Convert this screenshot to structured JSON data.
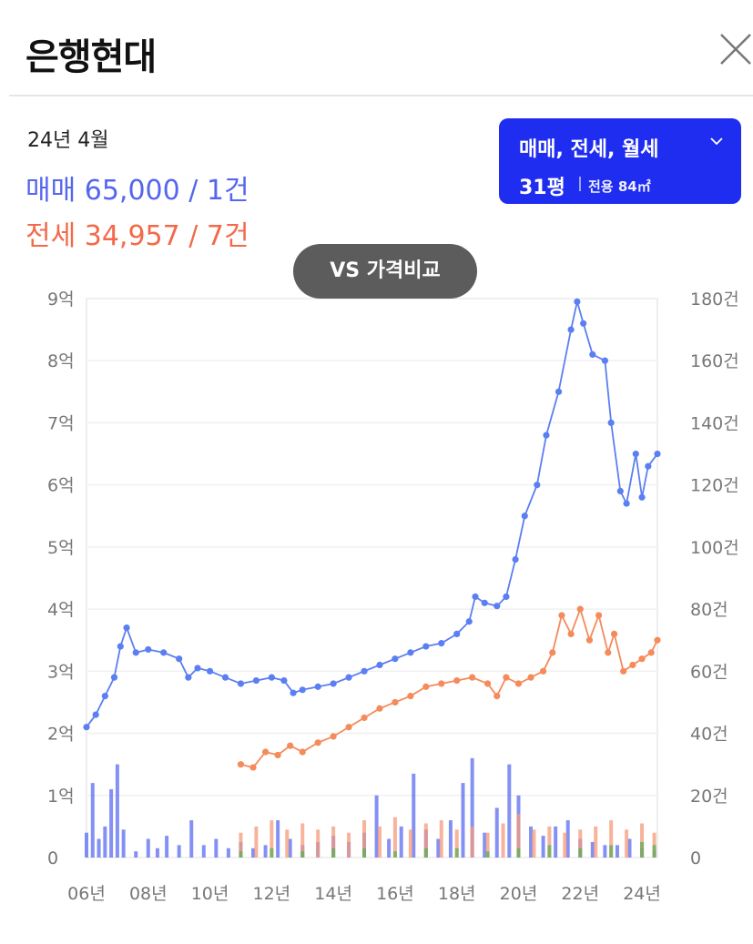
{
  "header": {
    "title": "은행현대"
  },
  "summary": {
    "date": "24년 4월",
    "sale": "매매 65,000 / 1건",
    "jeonse": "전세 34,957 / 7건"
  },
  "filter": {
    "trade_types": "매매, 전세, 월세",
    "size": "31평",
    "area": "전용 84㎡"
  },
  "compare_button": {
    "label": "VS 가격비교"
  },
  "colors": {
    "sale": "#5b7ff2",
    "jeonse": "#f58a5a",
    "accent": "#1f2df0"
  },
  "chart_data": {
    "type": "line",
    "x_ticks": [
      "06년",
      "08년",
      "10년",
      "12년",
      "14년",
      "16년",
      "18년",
      "20년",
      "22년",
      "24년"
    ],
    "y_left": {
      "ticks": [
        "0",
        "1억",
        "2억",
        "3억",
        "4억",
        "5억",
        "6억",
        "7억",
        "8억",
        "9억"
      ],
      "range": [
        0,
        9
      ]
    },
    "y_right": {
      "ticks": [
        "0",
        "20건",
        "40건",
        "60건",
        "80건",
        "100건",
        "120건",
        "140건",
        "160건",
        "180건"
      ],
      "range": [
        0,
        180
      ]
    },
    "x_range": [
      2006,
      2024.5
    ],
    "series": [
      {
        "name": "매매",
        "color": "#5b7ff2",
        "points": [
          [
            2006.0,
            2.1
          ],
          [
            2006.3,
            2.3
          ],
          [
            2006.6,
            2.6
          ],
          [
            2006.9,
            2.9
          ],
          [
            2007.1,
            3.4
          ],
          [
            2007.3,
            3.7
          ],
          [
            2007.6,
            3.3
          ],
          [
            2008.0,
            3.35
          ],
          [
            2008.5,
            3.3
          ],
          [
            2009.0,
            3.2
          ],
          [
            2009.3,
            2.9
          ],
          [
            2009.6,
            3.05
          ],
          [
            2010.0,
            3.0
          ],
          [
            2010.5,
            2.9
          ],
          [
            2011.0,
            2.8
          ],
          [
            2011.5,
            2.85
          ],
          [
            2012.0,
            2.9
          ],
          [
            2012.4,
            2.85
          ],
          [
            2012.7,
            2.65
          ],
          [
            2013.0,
            2.7
          ],
          [
            2013.5,
            2.75
          ],
          [
            2014.0,
            2.8
          ],
          [
            2014.5,
            2.9
          ],
          [
            2015.0,
            3.0
          ],
          [
            2015.5,
            3.1
          ],
          [
            2016.0,
            3.2
          ],
          [
            2016.5,
            3.3
          ],
          [
            2017.0,
            3.4
          ],
          [
            2017.5,
            3.45
          ],
          [
            2018.0,
            3.6
          ],
          [
            2018.4,
            3.8
          ],
          [
            2018.6,
            4.2
          ],
          [
            2018.9,
            4.1
          ],
          [
            2019.3,
            4.05
          ],
          [
            2019.6,
            4.2
          ],
          [
            2019.9,
            4.8
          ],
          [
            2020.2,
            5.5
          ],
          [
            2020.6,
            6.0
          ],
          [
            2020.9,
            6.8
          ],
          [
            2021.3,
            7.5
          ],
          [
            2021.7,
            8.5
          ],
          [
            2021.9,
            8.95
          ],
          [
            2022.1,
            8.6
          ],
          [
            2022.4,
            8.1
          ],
          [
            2022.8,
            8.0
          ],
          [
            2023.0,
            7.0
          ],
          [
            2023.3,
            5.9
          ],
          [
            2023.5,
            5.7
          ],
          [
            2023.8,
            6.5
          ],
          [
            2024.0,
            5.8
          ],
          [
            2024.2,
            6.3
          ],
          [
            2024.5,
            6.5
          ]
        ]
      },
      {
        "name": "전세",
        "color": "#f58a5a",
        "points": [
          [
            2011.0,
            1.5
          ],
          [
            2011.4,
            1.45
          ],
          [
            2011.8,
            1.7
          ],
          [
            2012.2,
            1.65
          ],
          [
            2012.6,
            1.8
          ],
          [
            2013.0,
            1.7
          ],
          [
            2013.5,
            1.85
          ],
          [
            2014.0,
            1.95
          ],
          [
            2014.5,
            2.1
          ],
          [
            2015.0,
            2.25
          ],
          [
            2015.5,
            2.4
          ],
          [
            2016.0,
            2.5
          ],
          [
            2016.5,
            2.6
          ],
          [
            2017.0,
            2.75
          ],
          [
            2017.5,
            2.8
          ],
          [
            2018.0,
            2.85
          ],
          [
            2018.5,
            2.9
          ],
          [
            2019.0,
            2.8
          ],
          [
            2019.3,
            2.6
          ],
          [
            2019.6,
            2.9
          ],
          [
            2020.0,
            2.8
          ],
          [
            2020.4,
            2.9
          ],
          [
            2020.8,
            3.0
          ],
          [
            2021.1,
            3.3
          ],
          [
            2021.4,
            3.9
          ],
          [
            2021.7,
            3.6
          ],
          [
            2022.0,
            4.0
          ],
          [
            2022.3,
            3.5
          ],
          [
            2022.6,
            3.9
          ],
          [
            2022.9,
            3.3
          ],
          [
            2023.1,
            3.6
          ],
          [
            2023.4,
            3.0
          ],
          [
            2023.7,
            3.1
          ],
          [
            2024.0,
            3.2
          ],
          [
            2024.3,
            3.3
          ],
          [
            2024.5,
            3.5
          ]
        ]
      },
      {
        "name": "매매 거래량",
        "color": "#5b6cf0",
        "axis": "right",
        "points": [
          [
            2006.0,
            8
          ],
          [
            2006.2,
            24
          ],
          [
            2006.4,
            6
          ],
          [
            2006.6,
            10
          ],
          [
            2006.8,
            22
          ],
          [
            2007.0,
            30
          ],
          [
            2007.2,
            9
          ],
          [
            2007.6,
            2
          ],
          [
            2008.0,
            6
          ],
          [
            2008.3,
            3
          ],
          [
            2008.6,
            7
          ],
          [
            2009.0,
            4
          ],
          [
            2009.4,
            12
          ],
          [
            2009.8,
            4
          ],
          [
            2010.2,
            6
          ],
          [
            2010.6,
            3
          ],
          [
            2011.0,
            5
          ],
          [
            2011.4,
            3
          ],
          [
            2011.8,
            4
          ],
          [
            2012.2,
            12
          ],
          [
            2012.6,
            6
          ],
          [
            2013.0,
            4
          ],
          [
            2013.5,
            5
          ],
          [
            2014.0,
            7
          ],
          [
            2014.5,
            5
          ],
          [
            2015.0,
            8
          ],
          [
            2015.4,
            20
          ],
          [
            2015.8,
            6
          ],
          [
            2016.2,
            10
          ],
          [
            2016.6,
            27
          ],
          [
            2017.0,
            9
          ],
          [
            2017.4,
            6
          ],
          [
            2017.8,
            12
          ],
          [
            2018.2,
            24
          ],
          [
            2018.5,
            32
          ],
          [
            2018.9,
            8
          ],
          [
            2019.3,
            16
          ],
          [
            2019.7,
            30
          ],
          [
            2020.0,
            20
          ],
          [
            2020.4,
            10
          ],
          [
            2020.8,
            7
          ],
          [
            2021.2,
            10
          ],
          [
            2021.6,
            12
          ],
          [
            2022.0,
            6
          ],
          [
            2022.4,
            5
          ],
          [
            2022.8,
            4
          ],
          [
            2023.2,
            4
          ],
          [
            2023.6,
            6
          ],
          [
            2024.0,
            3
          ],
          [
            2024.4,
            2
          ]
        ]
      },
      {
        "name": "전세 거래량",
        "color": "#f59a7a",
        "axis": "right",
        "points": [
          [
            2011.0,
            8
          ],
          [
            2011.5,
            10
          ],
          [
            2012.0,
            12
          ],
          [
            2012.5,
            9
          ],
          [
            2013.0,
            11
          ],
          [
            2013.5,
            9
          ],
          [
            2014.0,
            10
          ],
          [
            2014.5,
            8
          ],
          [
            2015.0,
            12
          ],
          [
            2015.5,
            10
          ],
          [
            2016.0,
            13
          ],
          [
            2016.5,
            9
          ],
          [
            2017.0,
            11
          ],
          [
            2017.5,
            12
          ],
          [
            2018.0,
            9
          ],
          [
            2018.5,
            10
          ],
          [
            2019.0,
            8
          ],
          [
            2019.5,
            11
          ],
          [
            2020.0,
            14
          ],
          [
            2020.5,
            9
          ],
          [
            2021.0,
            10
          ],
          [
            2021.5,
            8
          ],
          [
            2022.0,
            9
          ],
          [
            2022.5,
            10
          ],
          [
            2023.0,
            12
          ],
          [
            2023.5,
            9
          ],
          [
            2024.0,
            11
          ],
          [
            2024.4,
            8
          ]
        ]
      },
      {
        "name": "월세 거래량",
        "color": "#5fae54",
        "axis": "right",
        "points": [
          [
            2011.0,
            2
          ],
          [
            2012.0,
            3
          ],
          [
            2013.0,
            2
          ],
          [
            2014.0,
            3
          ],
          [
            2015.0,
            3
          ],
          [
            2016.0,
            2
          ],
          [
            2017.0,
            3
          ],
          [
            2018.0,
            3
          ],
          [
            2019.0,
            2
          ],
          [
            2020.0,
            3
          ],
          [
            2021.0,
            4
          ],
          [
            2022.0,
            3
          ],
          [
            2023.0,
            4
          ],
          [
            2024.0,
            5
          ],
          [
            2024.4,
            4
          ]
        ]
      }
    ]
  }
}
